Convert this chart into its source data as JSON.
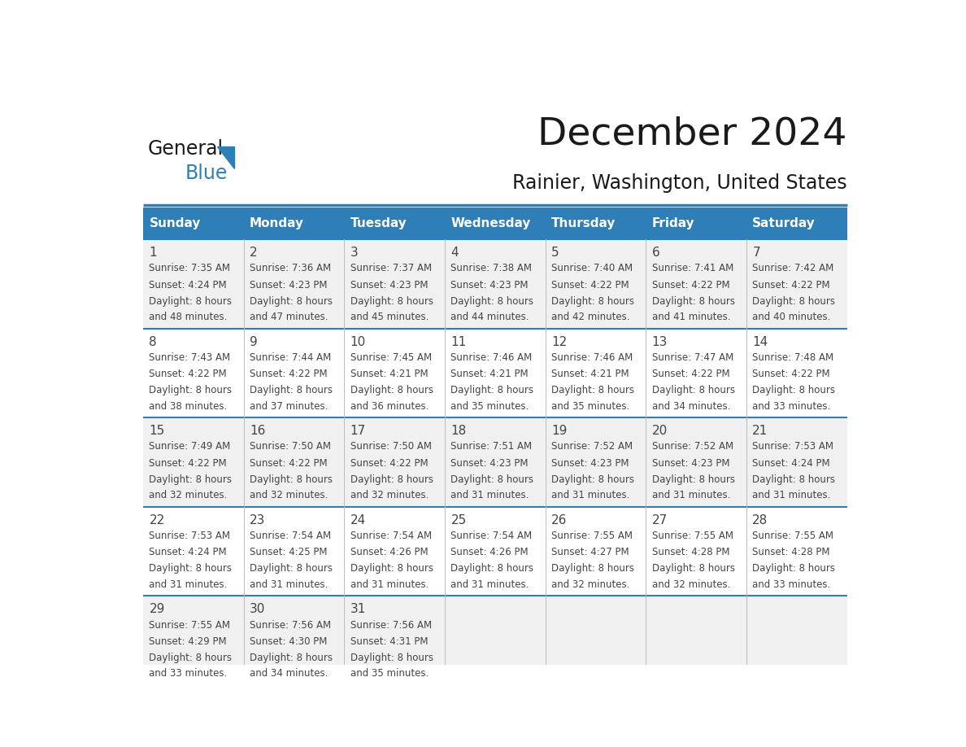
{
  "title": "December 2024",
  "subtitle": "Rainier, Washington, United States",
  "header_bg": "#2e7eb8",
  "header_text_color": "#ffffff",
  "days_of_week": [
    "Sunday",
    "Monday",
    "Tuesday",
    "Wednesday",
    "Thursday",
    "Friday",
    "Saturday"
  ],
  "row_bg_odd": "#f0f0f0",
  "row_bg_even": "#ffffff",
  "separator_color": "#2e7eb8",
  "text_color": "#444444",
  "calendar_data": [
    {
      "day": 1,
      "col": 0,
      "row": 0,
      "sunrise": "7:35 AM",
      "sunset": "4:24 PM",
      "minutes": "48 minutes."
    },
    {
      "day": 2,
      "col": 1,
      "row": 0,
      "sunrise": "7:36 AM",
      "sunset": "4:23 PM",
      "minutes": "47 minutes."
    },
    {
      "day": 3,
      "col": 2,
      "row": 0,
      "sunrise": "7:37 AM",
      "sunset": "4:23 PM",
      "minutes": "45 minutes."
    },
    {
      "day": 4,
      "col": 3,
      "row": 0,
      "sunrise": "7:38 AM",
      "sunset": "4:23 PM",
      "minutes": "44 minutes."
    },
    {
      "day": 5,
      "col": 4,
      "row": 0,
      "sunrise": "7:40 AM",
      "sunset": "4:22 PM",
      "minutes": "42 minutes."
    },
    {
      "day": 6,
      "col": 5,
      "row": 0,
      "sunrise": "7:41 AM",
      "sunset": "4:22 PM",
      "minutes": "41 minutes."
    },
    {
      "day": 7,
      "col": 6,
      "row": 0,
      "sunrise": "7:42 AM",
      "sunset": "4:22 PM",
      "minutes": "40 minutes."
    },
    {
      "day": 8,
      "col": 0,
      "row": 1,
      "sunrise": "7:43 AM",
      "sunset": "4:22 PM",
      "minutes": "38 minutes."
    },
    {
      "day": 9,
      "col": 1,
      "row": 1,
      "sunrise": "7:44 AM",
      "sunset": "4:22 PM",
      "minutes": "37 minutes."
    },
    {
      "day": 10,
      "col": 2,
      "row": 1,
      "sunrise": "7:45 AM",
      "sunset": "4:21 PM",
      "minutes": "36 minutes."
    },
    {
      "day": 11,
      "col": 3,
      "row": 1,
      "sunrise": "7:46 AM",
      "sunset": "4:21 PM",
      "minutes": "35 minutes."
    },
    {
      "day": 12,
      "col": 4,
      "row": 1,
      "sunrise": "7:46 AM",
      "sunset": "4:21 PM",
      "minutes": "35 minutes."
    },
    {
      "day": 13,
      "col": 5,
      "row": 1,
      "sunrise": "7:47 AM",
      "sunset": "4:22 PM",
      "minutes": "34 minutes."
    },
    {
      "day": 14,
      "col": 6,
      "row": 1,
      "sunrise": "7:48 AM",
      "sunset": "4:22 PM",
      "minutes": "33 minutes."
    },
    {
      "day": 15,
      "col": 0,
      "row": 2,
      "sunrise": "7:49 AM",
      "sunset": "4:22 PM",
      "minutes": "32 minutes."
    },
    {
      "day": 16,
      "col": 1,
      "row": 2,
      "sunrise": "7:50 AM",
      "sunset": "4:22 PM",
      "minutes": "32 minutes."
    },
    {
      "day": 17,
      "col": 2,
      "row": 2,
      "sunrise": "7:50 AM",
      "sunset": "4:22 PM",
      "minutes": "32 minutes."
    },
    {
      "day": 18,
      "col": 3,
      "row": 2,
      "sunrise": "7:51 AM",
      "sunset": "4:23 PM",
      "minutes": "31 minutes."
    },
    {
      "day": 19,
      "col": 4,
      "row": 2,
      "sunrise": "7:52 AM",
      "sunset": "4:23 PM",
      "minutes": "31 minutes."
    },
    {
      "day": 20,
      "col": 5,
      "row": 2,
      "sunrise": "7:52 AM",
      "sunset": "4:23 PM",
      "minutes": "31 minutes."
    },
    {
      "day": 21,
      "col": 6,
      "row": 2,
      "sunrise": "7:53 AM",
      "sunset": "4:24 PM",
      "minutes": "31 minutes."
    },
    {
      "day": 22,
      "col": 0,
      "row": 3,
      "sunrise": "7:53 AM",
      "sunset": "4:24 PM",
      "minutes": "31 minutes."
    },
    {
      "day": 23,
      "col": 1,
      "row": 3,
      "sunrise": "7:54 AM",
      "sunset": "4:25 PM",
      "minutes": "31 minutes."
    },
    {
      "day": 24,
      "col": 2,
      "row": 3,
      "sunrise": "7:54 AM",
      "sunset": "4:26 PM",
      "minutes": "31 minutes."
    },
    {
      "day": 25,
      "col": 3,
      "row": 3,
      "sunrise": "7:54 AM",
      "sunset": "4:26 PM",
      "minutes": "31 minutes."
    },
    {
      "day": 26,
      "col": 4,
      "row": 3,
      "sunrise": "7:55 AM",
      "sunset": "4:27 PM",
      "minutes": "32 minutes."
    },
    {
      "day": 27,
      "col": 5,
      "row": 3,
      "sunrise": "7:55 AM",
      "sunset": "4:28 PM",
      "minutes": "32 minutes."
    },
    {
      "day": 28,
      "col": 6,
      "row": 3,
      "sunrise": "7:55 AM",
      "sunset": "4:28 PM",
      "minutes": "33 minutes."
    },
    {
      "day": 29,
      "col": 0,
      "row": 4,
      "sunrise": "7:55 AM",
      "sunset": "4:29 PM",
      "minutes": "33 minutes."
    },
    {
      "day": 30,
      "col": 1,
      "row": 4,
      "sunrise": "7:56 AM",
      "sunset": "4:30 PM",
      "minutes": "34 minutes."
    },
    {
      "day": 31,
      "col": 2,
      "row": 4,
      "sunrise": "7:56 AM",
      "sunset": "4:31 PM",
      "minutes": "35 minutes."
    }
  ],
  "num_rows": 5,
  "num_cols": 7,
  "logo_text1": "General",
  "logo_text2": "Blue",
  "logo_color1": "#1a1a1a",
  "logo_color2": "#2e7eb8",
  "logo_triangle_color": "#2e7eb8"
}
